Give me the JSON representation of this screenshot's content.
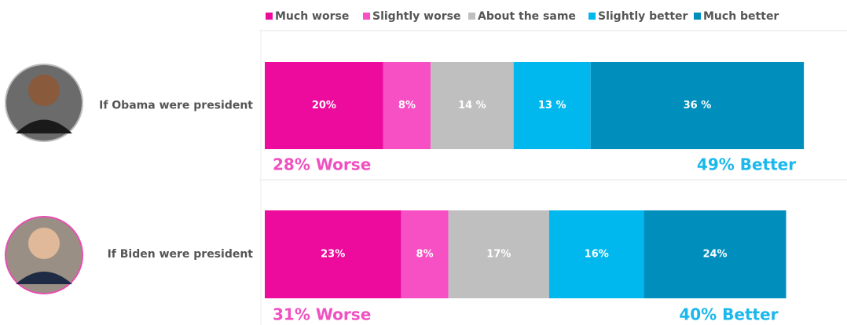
{
  "chart_data": {
    "type": "bar",
    "orientation": "horizontal",
    "stacked": true,
    "categories": [
      "If Obama were president",
      "If Biden were president"
    ],
    "series": [
      {
        "name": "Much worse",
        "color": "#ec0b9c",
        "values": [
          20,
          23
        ],
        "value_labels": [
          "20%",
          "23%"
        ]
      },
      {
        "name": "Slightly worse",
        "color": "#f74fc4",
        "values": [
          8,
          8
        ],
        "value_labels": [
          "8%",
          "8%"
        ]
      },
      {
        "name": "About the same",
        "color": "#bfbfbf",
        "values": [
          14,
          17
        ],
        "value_labels": [
          "14 %",
          "17%"
        ]
      },
      {
        "name": "Slightly better",
        "color": "#00b8ee",
        "values": [
          13,
          16
        ],
        "value_labels": [
          "13 %",
          "16%"
        ]
      },
      {
        "name": "Much better",
        "color": "#008fbd",
        "values": [
          36,
          24
        ],
        "value_labels": [
          "36 %",
          "24%"
        ]
      }
    ],
    "annotations": [
      [
        "28% Worse",
        "49% Better"
      ],
      [
        "31% Worse",
        "40% Better"
      ]
    ]
  }
}
